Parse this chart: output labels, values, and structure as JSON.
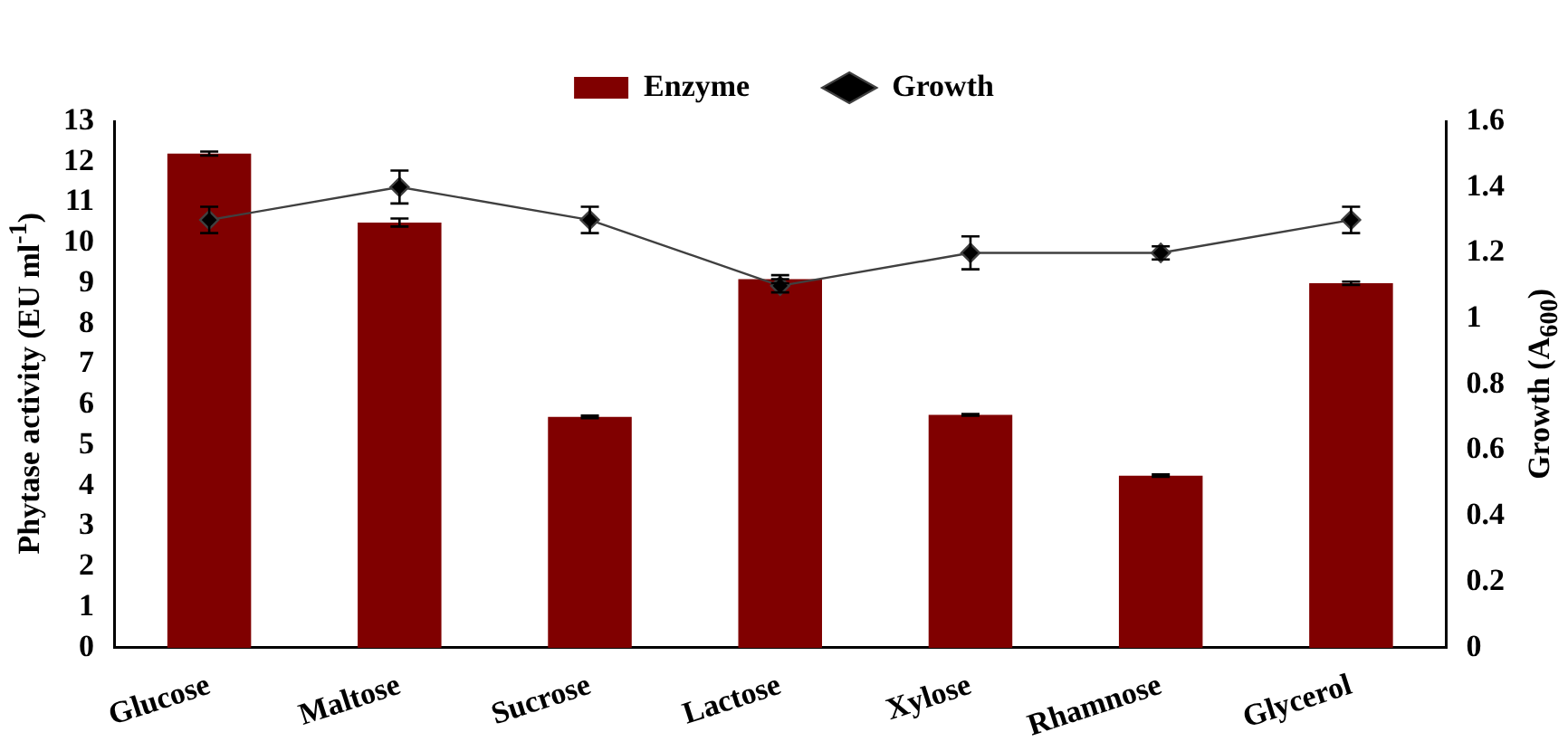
{
  "chart_data": {
    "type": "bar",
    "ylabel": "Phytase activity (EU ml$^{-1}$)",
    "y2label": "Growth (A$_{600}$)",
    "categories": [
      "Glucose",
      "Maltose",
      "Sucrose",
      "Lactose",
      "Xylose",
      "Rhamnose",
      "Glycerol"
    ],
    "series": [
      {
        "name": "Enzyme",
        "color": "#800000",
        "values": [
          12.2,
          10.5,
          5.7,
          9.1,
          5.75,
          4.25,
          9.0
        ],
        "errors": [
          0.05,
          0.1,
          0.03,
          0.1,
          0.02,
          0.03,
          0.04
        ]
      },
      {
        "name": "Growth",
        "type": "line",
        "axis": "y2",
        "color": "#404040",
        "values": [
          1.3,
          1.4,
          1.3,
          1.1,
          1.2,
          1.2,
          1.3
        ],
        "errors": [
          0.04,
          0.05,
          0.04,
          0.02,
          0.05,
          0.02,
          0.04
        ],
        "marker": "diamond"
      }
    ],
    "ylim": [
      0,
      13
    ],
    "yticks": [
      0,
      1,
      2,
      3,
      4,
      5,
      6,
      7,
      8,
      9,
      10,
      11,
      12,
      13
    ],
    "y2lim": [
      0,
      1.6
    ],
    "y2ticks": [
      0,
      0.2,
      0.4,
      0.6,
      0.8,
      1,
      1.2,
      1.4,
      1.6
    ],
    "grid": false,
    "legend": "top"
  }
}
